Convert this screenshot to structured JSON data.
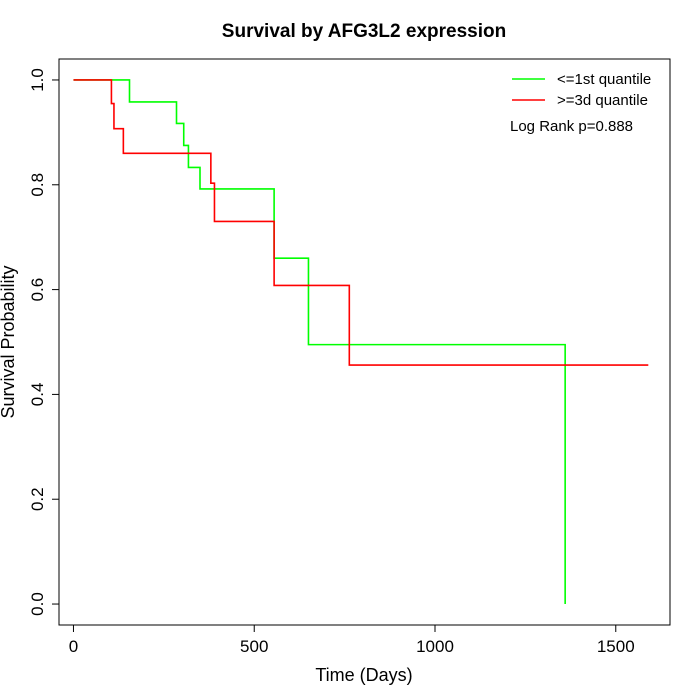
{
  "chart_data": {
    "type": "line",
    "title": "Survival by AFG3L2 expression",
    "xlabel": "Time (Days)",
    "ylabel": "Survival Probability",
    "xlim": [
      -40,
      1650
    ],
    "ylim": [
      -0.04,
      1.04
    ],
    "x_ticks": [
      0,
      500,
      1000,
      1500
    ],
    "y_ticks": [
      0.0,
      0.2,
      0.4,
      0.6,
      0.8,
      1.0
    ],
    "x_tick_labels": [
      "0",
      "500",
      "1000",
      "1500"
    ],
    "y_tick_labels": [
      "0.0",
      "0.2",
      "0.4",
      "0.6",
      "0.8",
      "1.0"
    ],
    "grid": false,
    "legend_position": "top-right",
    "annotation": "Log Rank p=0.888",
    "series": [
      {
        "name": "<=1st quantile",
        "color": "#00ff00",
        "steps": [
          [
            0,
            1.0
          ],
          [
            155,
            0.958
          ],
          [
            285,
            0.917
          ],
          [
            305,
            0.875
          ],
          [
            318,
            0.833
          ],
          [
            350,
            0.792
          ],
          [
            555,
            0.66
          ],
          [
            650,
            0.495
          ],
          [
            1360,
            0.0
          ]
        ]
      },
      {
        "name": ">=3d quantile",
        "color": "#ff0000",
        "steps": [
          [
            0,
            1.0
          ],
          [
            105,
            0.955
          ],
          [
            112,
            0.907
          ],
          [
            138,
            0.86
          ],
          [
            380,
            0.803
          ],
          [
            390,
            0.73
          ],
          [
            555,
            0.608
          ],
          [
            763,
            0.456
          ],
          [
            1590,
            0.456
          ]
        ]
      }
    ]
  }
}
